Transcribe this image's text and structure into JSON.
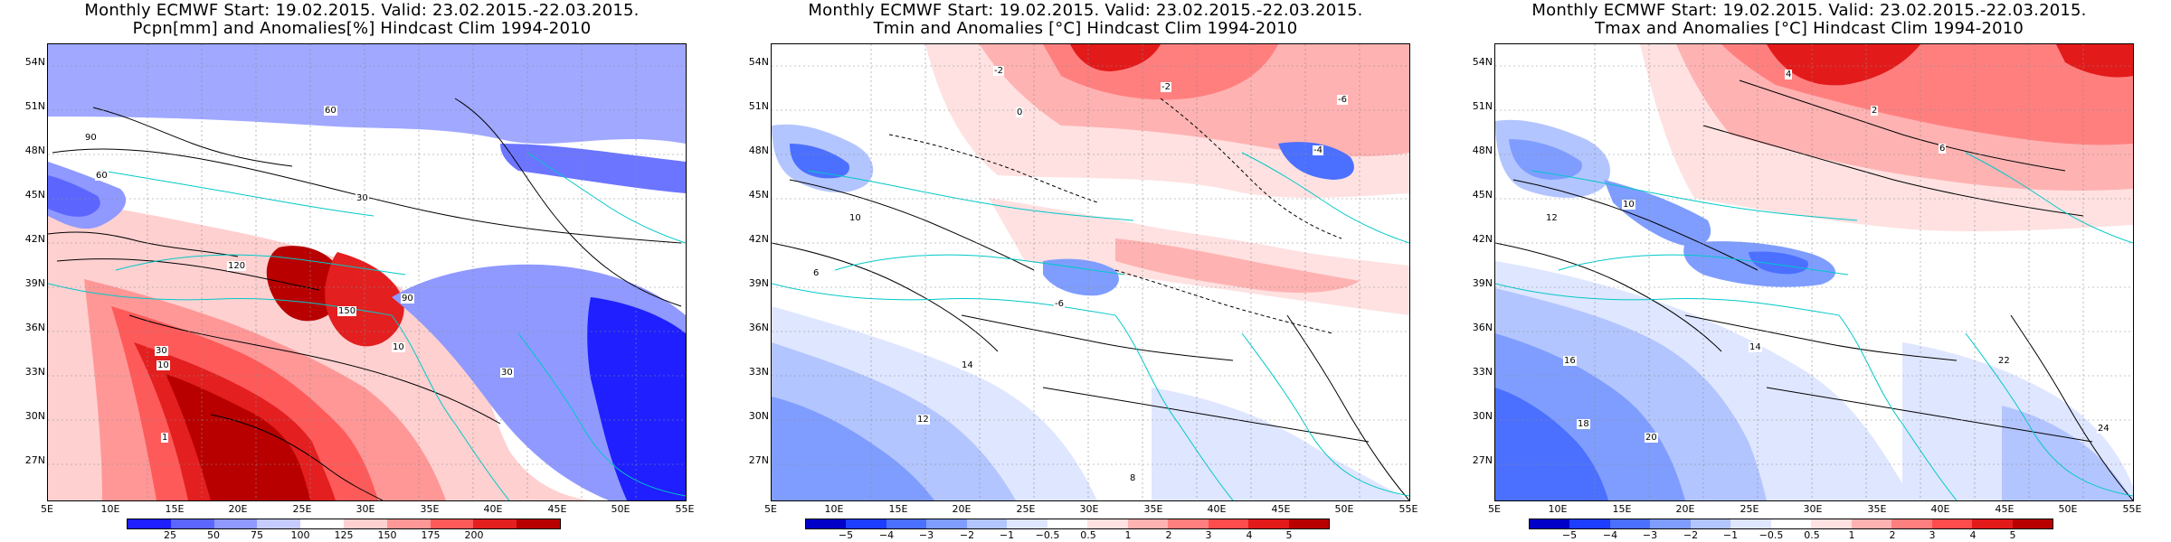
{
  "panels": [
    {
      "title_line1": "Monthly ECMWF Start: 19.02.2015. Valid: 23.02.2015.-22.03.2015.",
      "title_line2": "Pcpn[mm] and Anomalies[%] Hindcast Clim 1994-2010",
      "lat_labels": [
        "54N",
        "51N",
        "48N",
        "45N",
        "42N",
        "39N",
        "36N",
        "33N",
        "30N",
        "27N"
      ],
      "lon_labels": [
        "5E",
        "10E",
        "15E",
        "20E",
        "25E",
        "30E",
        "35E",
        "40E",
        "45E",
        "50E",
        "55E"
      ],
      "legend_labels": [
        "25",
        "50",
        "75",
        "100",
        "125",
        "150",
        "175",
        "200"
      ],
      "legend_colors": [
        "#1f1fff",
        "#5c66ff",
        "#8f99ff",
        "#c6ccff",
        "#ffffff",
        "#ffd0d0",
        "#ff9797",
        "#ff5a5a",
        "#e31f1f",
        "#b80000"
      ],
      "contour_labels": [
        {
          "text": "90",
          "x": 40,
          "y": 98
        },
        {
          "text": "60",
          "x": 52,
          "y": 140
        },
        {
          "text": "30",
          "x": 340,
          "y": 165
        },
        {
          "text": "60",
          "x": 305,
          "y": 68
        },
        {
          "text": "120",
          "x": 198,
          "y": 240
        },
        {
          "text": "150",
          "x": 320,
          "y": 290
        },
        {
          "text": "90",
          "x": 390,
          "y": 276
        },
        {
          "text": "30",
          "x": 118,
          "y": 334
        },
        {
          "text": "10",
          "x": 120,
          "y": 350
        },
        {
          "text": "1",
          "x": 125,
          "y": 430
        },
        {
          "text": "30",
          "x": 500,
          "y": 358
        },
        {
          "text": "10",
          "x": 380,
          "y": 330
        }
      ]
    },
    {
      "title_line1": "Monthly ECMWF Start: 19.02.2015. Valid: 23.02.2015.-22.03.2015.",
      "title_line2": "Tmin and Anomalies [°C] Hindcast Clim 1994-2010",
      "lat_labels": [
        "54N",
        "51N",
        "48N",
        "45N",
        "42N",
        "39N",
        "36N",
        "33N",
        "30N",
        "27N"
      ],
      "lon_labels": [
        "5E",
        "10E",
        "15E",
        "20E",
        "25E",
        "30E",
        "35E",
        "40E",
        "45E",
        "50E",
        "55E"
      ],
      "legend_labels": [
        "−5",
        "−4",
        "−3",
        "−2",
        "−1",
        "−0.5",
        "0.5",
        "1",
        "2",
        "3",
        "4",
        "5"
      ],
      "legend_colors": [
        "#0000c8",
        "#1d3dff",
        "#4b70ff",
        "#7f9dff",
        "#b3c5ff",
        "#dfe6ff",
        "#ffffff",
        "#ffe1e1",
        "#ffb2b2",
        "#ff7f7f",
        "#ff4c4c",
        "#e31a1a",
        "#b80000"
      ],
      "contour_labels": [
        {
          "text": "-2",
          "x": 245,
          "y": 24
        },
        {
          "text": "0",
          "x": 270,
          "y": 70
        },
        {
          "text": "-2",
          "x": 430,
          "y": 42
        },
        {
          "text": "-4",
          "x": 598,
          "y": 112
        },
        {
          "text": "-6",
          "x": 625,
          "y": 56
        },
        {
          "text": "10",
          "x": 85,
          "y": 187
        },
        {
          "text": "6",
          "x": 45,
          "y": 248
        },
        {
          "text": "14",
          "x": 209,
          "y": 350
        },
        {
          "text": "12",
          "x": 160,
          "y": 410
        },
        {
          "text": "-6",
          "x": 312,
          "y": 282
        },
        {
          "text": "8",
          "x": 395,
          "y": 475
        }
      ]
    },
    {
      "title_line1": "Monthly ECMWF Start: 19.02.2015. Valid: 23.02.2015.-22.03.2015.",
      "title_line2": "Tmax and Anomalies [°C] Hindcast Clim 1994-2010",
      "lat_labels": [
        "54N",
        "51N",
        "48N",
        "45N",
        "42N",
        "39N",
        "36N",
        "33N",
        "30N",
        "27N"
      ],
      "lon_labels": [
        "5E",
        "10E",
        "15E",
        "20E",
        "25E",
        "30E",
        "35E",
        "40E",
        "45E",
        "50E",
        "55E"
      ],
      "legend_labels": [
        "−5",
        "−4",
        "−3",
        "−2",
        "−1",
        "−0.5",
        "0.5",
        "1",
        "2",
        "3",
        "4",
        "5"
      ],
      "legend_colors": [
        "#0000c8",
        "#1d3dff",
        "#4b70ff",
        "#7f9dff",
        "#b3c5ff",
        "#dfe6ff",
        "#ffffff",
        "#ffe1e1",
        "#ffb2b2",
        "#ff7f7f",
        "#ff4c4c",
        "#e31a1a",
        "#b80000"
      ],
      "contour_labels": [
        {
          "text": "4",
          "x": 320,
          "y": 28
        },
        {
          "text": "2",
          "x": 415,
          "y": 68
        },
        {
          "text": "6",
          "x": 490,
          "y": 110
        },
        {
          "text": "12",
          "x": 55,
          "y": 187
        },
        {
          "text": "10",
          "x": 140,
          "y": 172
        },
        {
          "text": "14",
          "x": 280,
          "y": 330
        },
        {
          "text": "16",
          "x": 75,
          "y": 345
        },
        {
          "text": "18",
          "x": 90,
          "y": 415
        },
        {
          "text": "20",
          "x": 165,
          "y": 430
        },
        {
          "text": "22",
          "x": 555,
          "y": 345
        },
        {
          "text": "24",
          "x": 665,
          "y": 420
        }
      ]
    }
  ]
}
